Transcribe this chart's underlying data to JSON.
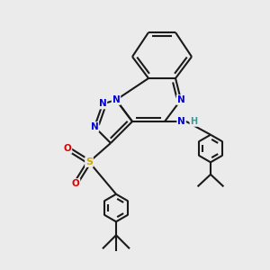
{
  "bg_color": "#ebebeb",
  "bond_color": "#1a1a1a",
  "N_color": "#0000dd",
  "S_color": "#ccaa00",
  "O_color": "#dd0000",
  "H_color": "#3a9a9a",
  "line_width": 1.5,
  "figsize": [
    3.0,
    3.0
  ],
  "dpi": 100,
  "xlim": [
    0,
    10
  ],
  "ylim": [
    0,
    10
  ]
}
